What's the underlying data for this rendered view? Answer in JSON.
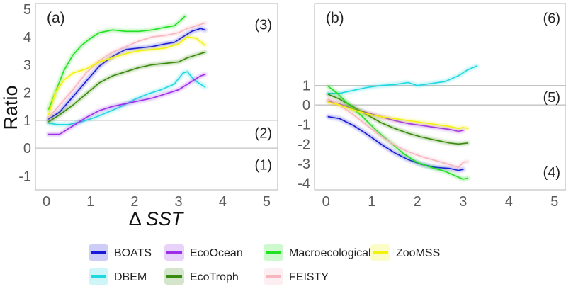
{
  "chart_data": {
    "type": "line",
    "ylabel": "Ratio",
    "xlabel_prefix": "Δ",
    "xlabel_var": "SST",
    "x_ticks": [
      "0",
      "1",
      "2",
      "3",
      "4",
      "5"
    ],
    "xlim": [
      -0.25,
      5.25
    ],
    "reference_lines": [
      0,
      1
    ],
    "legend": [
      {
        "name": "BOATS",
        "color": "#1a1adb"
      },
      {
        "name": "EcoOcean",
        "color": "#9b30e8"
      },
      {
        "name": "Macroecological",
        "color": "#22e022"
      },
      {
        "name": "ZooMSS",
        "color": "#f2f20a"
      },
      {
        "name": "DBEM",
        "color": "#20d8e0"
      },
      {
        "name": "EcoTroph",
        "color": "#3a8a12"
      },
      {
        "name": "FEISTY",
        "color": "#f7b5c0"
      }
    ],
    "panels": [
      {
        "label": "(a)",
        "ylim": [
          -1.5,
          5.2
        ],
        "y_ticks": [
          "-1",
          "0",
          "1",
          "2",
          "3",
          "4",
          "5"
        ],
        "region_labels": [
          {
            "text": "(3)",
            "y": 4.45
          },
          {
            "text": "(2)",
            "y": 0.55
          },
          {
            "text": "(1)",
            "y": -0.6
          }
        ],
        "series": [
          {
            "name": "BOATS",
            "x": [
              0.05,
              0.3,
              0.6,
              0.9,
              1.2,
              1.5,
              1.8,
              2.1,
              2.4,
              2.7,
              2.9,
              3.1,
              3.3,
              3.5,
              3.6
            ],
            "y": [
              1.05,
              1.3,
              1.85,
              2.4,
              2.95,
              3.3,
              3.55,
              3.6,
              3.65,
              3.75,
              3.8,
              4.0,
              4.2,
              4.3,
              4.25
            ]
          },
          {
            "name": "DBEM",
            "x": [
              0.05,
              0.25,
              0.5,
              0.8,
              1.1,
              1.4,
              1.7,
              2.0,
              2.3,
              2.6,
              2.9,
              3.1,
              3.2,
              3.3,
              3.4,
              3.5,
              3.6
            ],
            "y": [
              0.9,
              0.85,
              0.85,
              0.95,
              1.1,
              1.3,
              1.5,
              1.75,
              1.95,
              2.1,
              2.3,
              2.7,
              2.75,
              2.55,
              2.4,
              2.3,
              2.2
            ]
          },
          {
            "name": "EcoOcean",
            "x": [
              0.05,
              0.3,
              0.6,
              0.9,
              1.2,
              1.5,
              1.8,
              2.1,
              2.4,
              2.7,
              3.0,
              3.3,
              3.5,
              3.6
            ],
            "y": [
              0.5,
              0.5,
              0.8,
              1.1,
              1.35,
              1.5,
              1.6,
              1.7,
              1.8,
              1.95,
              2.1,
              2.4,
              2.6,
              2.65
            ]
          },
          {
            "name": "EcoTroph",
            "x": [
              0.05,
              0.3,
              0.6,
              0.9,
              1.2,
              1.5,
              1.8,
              2.1,
              2.4,
              2.7,
              3.0,
              3.2,
              3.4,
              3.6
            ],
            "y": [
              0.95,
              1.2,
              1.55,
              1.95,
              2.35,
              2.6,
              2.75,
              2.9,
              3.0,
              3.05,
              3.1,
              3.25,
              3.35,
              3.45
            ]
          },
          {
            "name": "Macroecological",
            "x": [
              0.05,
              0.2,
              0.4,
              0.6,
              0.8,
              1.0,
              1.2,
              1.5,
              1.8,
              2.1,
              2.4,
              2.7,
              2.9,
              3.05,
              3.15
            ],
            "y": [
              1.4,
              2.0,
              2.8,
              3.35,
              3.7,
              3.95,
              4.15,
              4.25,
              4.2,
              4.2,
              4.25,
              4.35,
              4.4,
              4.6,
              4.75
            ]
          },
          {
            "name": "FEISTY",
            "x": [
              0.05,
              0.3,
              0.6,
              0.9,
              1.2,
              1.5,
              1.8,
              2.1,
              2.4,
              2.7,
              3.0,
              3.2,
              3.4,
              3.6
            ],
            "y": [
              1.1,
              1.55,
              2.1,
              2.7,
              3.15,
              3.45,
              3.65,
              3.85,
              4.0,
              4.05,
              4.15,
              4.3,
              4.4,
              4.5
            ]
          },
          {
            "name": "ZooMSS",
            "x": [
              0.05,
              0.2,
              0.4,
              0.6,
              0.9,
              1.2,
              1.5,
              1.8,
              2.1,
              2.4,
              2.7,
              3.0,
              3.2,
              3.4,
              3.6
            ],
            "y": [
              1.2,
              2.0,
              2.45,
              2.7,
              2.85,
              3.1,
              3.25,
              3.4,
              3.5,
              3.55,
              3.6,
              3.75,
              4.0,
              3.95,
              3.7
            ]
          }
        ]
      },
      {
        "label": "(b)",
        "ylim": [
          -4.35,
          5.2
        ],
        "y_ticks": [
          "-4",
          "-3",
          "-2",
          "-1",
          "0",
          "1"
        ],
        "region_labels": [
          {
            "text": "(6)",
            "y": 4.45
          },
          {
            "text": "(5)",
            "y": 0.4
          },
          {
            "text": "(4)",
            "y": -3.45
          }
        ],
        "series": [
          {
            "name": "BOATS",
            "x": [
              0.05,
              0.3,
              0.6,
              0.9,
              1.2,
              1.5,
              1.8,
              2.1,
              2.4,
              2.7,
              2.9,
              3.0
            ],
            "y": [
              -0.6,
              -0.7,
              -1.05,
              -1.5,
              -2.0,
              -2.45,
              -2.8,
              -3.05,
              -3.2,
              -3.25,
              -3.35,
              -3.3
            ]
          },
          {
            "name": "DBEM",
            "x": [
              0.05,
              0.3,
              0.6,
              0.9,
              1.2,
              1.5,
              1.8,
              2.0,
              2.3,
              2.6,
              2.9,
              3.1,
              3.3
            ],
            "y": [
              0.6,
              0.6,
              0.75,
              0.9,
              1.0,
              1.05,
              1.15,
              1.0,
              1.1,
              1.2,
              1.5,
              1.8,
              2.0
            ]
          },
          {
            "name": "EcoOcean",
            "x": [
              0.05,
              0.3,
              0.6,
              0.9,
              1.2,
              1.5,
              1.8,
              2.1,
              2.4,
              2.7,
              2.9,
              3.0
            ],
            "y": [
              0.2,
              0.05,
              -0.2,
              -0.4,
              -0.6,
              -0.8,
              -0.95,
              -1.05,
              -1.15,
              -1.25,
              -1.35,
              -1.3
            ]
          },
          {
            "name": "EcoTroph",
            "x": [
              0.05,
              0.3,
              0.6,
              0.9,
              1.2,
              1.5,
              1.8,
              2.1,
              2.4,
              2.7,
              2.9,
              3.1
            ],
            "y": [
              0.55,
              0.3,
              -0.1,
              -0.5,
              -0.9,
              -1.2,
              -1.45,
              -1.65,
              -1.8,
              -1.95,
              -2.0,
              -1.95
            ]
          },
          {
            "name": "Macroecological",
            "x": [
              0.05,
              0.25,
              0.5,
              0.8,
              1.1,
              1.4,
              1.7,
              2.0,
              2.3,
              2.6,
              2.8,
              2.9,
              3.0,
              3.1
            ],
            "y": [
              0.95,
              0.6,
              0.0,
              -0.6,
              -1.3,
              -1.9,
              -2.5,
              -2.95,
              -3.2,
              -3.4,
              -3.6,
              -3.7,
              -3.8,
              -3.75
            ]
          },
          {
            "name": "FEISTY",
            "x": [
              0.05,
              0.3,
              0.6,
              0.9,
              1.2,
              1.5,
              1.8,
              2.1,
              2.4,
              2.7,
              2.9,
              3.0,
              3.1
            ],
            "y": [
              0.3,
              0.0,
              -0.5,
              -1.05,
              -1.6,
              -2.05,
              -2.4,
              -2.65,
              -2.85,
              -3.05,
              -3.2,
              -2.95,
              -2.9
            ]
          },
          {
            "name": "ZooMSS",
            "x": [
              0.05,
              0.3,
              0.6,
              0.9,
              1.2,
              1.5,
              1.8,
              2.1,
              2.4,
              2.7,
              2.9,
              3.0,
              3.1
            ],
            "y": [
              0.15,
              0.0,
              -0.25,
              -0.45,
              -0.6,
              -0.7,
              -0.8,
              -0.9,
              -1.0,
              -1.1,
              -1.2,
              -1.15,
              -1.2
            ]
          }
        ]
      }
    ]
  }
}
